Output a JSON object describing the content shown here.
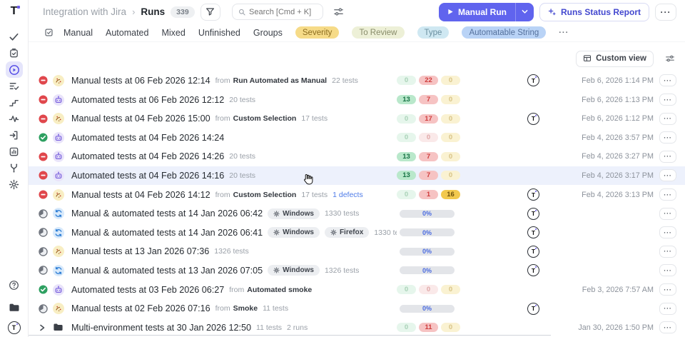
{
  "brand": {
    "letter": "T"
  },
  "labels": {
    "from": "from",
    "dots": "···",
    "crumb_sep": "›"
  },
  "colors": {
    "accent_purple": "#6064ee",
    "link_blue": "#4e7be8",
    "fail_red": "#e0474c",
    "pass_green": "#2ea061",
    "pending_gray": "#7f858e",
    "badge_green": "#b9e8cb",
    "badge_red": "#f6c3c3",
    "badge_yellow": "#f2c94e",
    "chip_severity": "#f6db88",
    "chip_to_review": "#edf0d7",
    "chip_type": "#cfe8f2",
    "chip_automatable": "#b9d3f6",
    "row_hover": "#edf1fc"
  },
  "icons": [
    "logo",
    "tests-check-icon",
    "test-plan-icon",
    "runs-play-icon",
    "requirements-icon",
    "steps-icon",
    "pulse-icon",
    "import-icon",
    "reports-icon",
    "branch-icon",
    "gear-icon",
    "help-icon",
    "projects-folder-icon",
    "profile-avatar",
    "filter-funnel-icon",
    "search-icon",
    "adjustments-icon",
    "play-icon",
    "chevron-down-icon",
    "sparkle-plus-icon",
    "edit-square-icon",
    "table-view-icon",
    "status-fail-icon",
    "status-pass-icon",
    "status-pending-icon",
    "run-manual-icon",
    "run-automated-icon",
    "run-mixed-icon",
    "folder-icon",
    "chevron-right-icon",
    "env-gear-icon",
    "mouse-cursor"
  ],
  "sidebar": {
    "items": [
      "tests",
      "test-plans",
      "runs",
      "requirements",
      "shared-steps",
      "pulse",
      "imports",
      "reports",
      "environments",
      "settings"
    ],
    "active": "runs",
    "bottom": [
      "help",
      "projects",
      "profile"
    ]
  },
  "header": {
    "breadcrumb_parent": "Integration with Jira",
    "page_title": "Runs",
    "runs_count": "339",
    "search_placeholder": "Search [Cmd + K]",
    "manual_run_label": "Manual Run",
    "report_label": "Runs Status Report"
  },
  "filters": {
    "tabs": [
      "Manual",
      "Automated",
      "Mixed",
      "Unfinished",
      "Groups"
    ],
    "chips": [
      {
        "label": "Severity"
      },
      {
        "label": "To Review"
      },
      {
        "label": "Type"
      },
      {
        "label": "Automatable String"
      }
    ]
  },
  "toolbar": {
    "custom_view_label": "Custom view"
  },
  "rows": [
    {
      "status": "fail",
      "type": "manual",
      "title": "Manual tests at 06 Feb 2026 12:14",
      "from": "Run Automated as Manual",
      "tests": "22 tests",
      "avatar": true,
      "date": "Feb 6, 2026 1:14 PM",
      "result": {
        "mode": "badges",
        "badges": [
          {
            "v": "0",
            "k": "green-f"
          },
          {
            "v": "22",
            "k": "red"
          },
          {
            "v": "0",
            "k": "yellow-f"
          }
        ]
      }
    },
    {
      "status": "fail",
      "type": "automated",
      "title": "Automated tests at 06 Feb 2026 12:12",
      "tests": "20 tests",
      "avatar": false,
      "date": "Feb 6, 2026 1:13 PM",
      "result": {
        "mode": "badges",
        "badges": [
          {
            "v": "13",
            "k": "green"
          },
          {
            "v": "7",
            "k": "red"
          },
          {
            "v": "0",
            "k": "yellow-f"
          }
        ]
      }
    },
    {
      "status": "fail",
      "type": "manual",
      "title": "Manual tests at 04 Feb 2026 15:00",
      "from": "Custom Selection",
      "tests": "17 tests",
      "avatar": true,
      "date": "Feb 6, 2026 1:12 PM",
      "result": {
        "mode": "badges",
        "badges": [
          {
            "v": "0",
            "k": "green-f"
          },
          {
            "v": "17",
            "k": "red"
          },
          {
            "v": "0",
            "k": "yellow-f"
          }
        ]
      }
    },
    {
      "status": "pass",
      "type": "automated",
      "title": "Automated tests at 04 Feb 2026 14:24",
      "avatar": false,
      "date": "Feb 4, 2026 3:57 PM",
      "result": {
        "mode": "badges",
        "badges": [
          {
            "v": "0",
            "k": "green-f"
          },
          {
            "v": "0",
            "k": "red-f"
          },
          {
            "v": "0",
            "k": "yellow-f"
          }
        ]
      }
    },
    {
      "status": "fail",
      "type": "automated",
      "title": "Automated tests at 04 Feb 2026 14:26",
      "tests": "20 tests",
      "avatar": false,
      "date": "Feb 4, 2026 3:27 PM",
      "result": {
        "mode": "badges",
        "badges": [
          {
            "v": "13",
            "k": "green"
          },
          {
            "v": "7",
            "k": "red"
          },
          {
            "v": "0",
            "k": "yellow-f"
          }
        ]
      }
    },
    {
      "status": "fail",
      "type": "automated",
      "title": "Automated tests at 04 Feb 2026 14:16",
      "tests": "20 tests",
      "avatar": false,
      "date": "Feb 4, 2026 3:17 PM",
      "hover": true,
      "result": {
        "mode": "badges",
        "badges": [
          {
            "v": "13",
            "k": "green"
          },
          {
            "v": "7",
            "k": "red"
          },
          {
            "v": "0",
            "k": "yellow-f"
          }
        ]
      }
    },
    {
      "status": "fail",
      "type": "manual",
      "title": "Manual tests at 04 Feb 2026 14:12",
      "from": "Custom Selection",
      "tests": "17 tests",
      "defects": "1 defects",
      "avatar": true,
      "date": "Feb 4, 2026 3:13 PM",
      "result": {
        "mode": "badges",
        "badges": [
          {
            "v": "0",
            "k": "green-f"
          },
          {
            "v": "1",
            "k": "red"
          },
          {
            "v": "16",
            "k": "yellow"
          }
        ]
      }
    },
    {
      "status": "pending",
      "type": "mixed",
      "title": "Manual & automated tests at 14 Jan 2026 06:42",
      "chips": [
        "Windows"
      ],
      "tests": "1330 tests",
      "avatar": true,
      "result": {
        "mode": "progress",
        "progress": "0%"
      }
    },
    {
      "status": "pending",
      "type": "mixed",
      "title": "Manual & automated tests at 14 Jan 2026 06:41",
      "chips": [
        "Windows",
        "Firefox"
      ],
      "tests": "1330 tests",
      "avatar": true,
      "result": {
        "mode": "progress",
        "progress": "0%"
      }
    },
    {
      "status": "pending",
      "type": "manual",
      "title": "Manual tests at 13 Jan 2026 07:36",
      "tests": "1326 tests",
      "avatar": true,
      "result": {
        "mode": "progress",
        "progress": "0%"
      }
    },
    {
      "status": "pending",
      "type": "mixed",
      "title": "Manual & automated tests at 13 Jan 2026 07:05",
      "chips": [
        "Windows"
      ],
      "tests": "1326 tests",
      "avatar": true,
      "result": {
        "mode": "progress",
        "progress": "0%"
      }
    },
    {
      "status": "pass",
      "type": "automated",
      "title": "Automated tests at 03 Feb 2026 06:27",
      "from": "Automated smoke",
      "avatar": false,
      "date": "Feb 3, 2026 7:57 AM",
      "result": {
        "mode": "badges",
        "badges": [
          {
            "v": "0",
            "k": "green-f"
          },
          {
            "v": "0",
            "k": "red-f"
          },
          {
            "v": "0",
            "k": "yellow-f"
          }
        ]
      }
    },
    {
      "status": "pending",
      "type": "manual",
      "title": "Manual tests at 02 Feb 2026 07:16",
      "from": "Smoke",
      "tests": "11 tests",
      "avatar": true,
      "result": {
        "mode": "progress",
        "progress": "0%"
      }
    },
    {
      "group": true,
      "type": "folder",
      "title": "Multi-environment tests at 30 Jan 2026 12:50",
      "tests": "11 tests",
      "runs_count": "2 runs",
      "avatar": false,
      "date": "Jan 30, 2026 1:50 PM",
      "result": {
        "mode": "badges",
        "badges": [
          {
            "v": "0",
            "k": "green-f"
          },
          {
            "v": "11",
            "k": "red"
          },
          {
            "v": "0",
            "k": "yellow-f"
          }
        ]
      }
    }
  ]
}
